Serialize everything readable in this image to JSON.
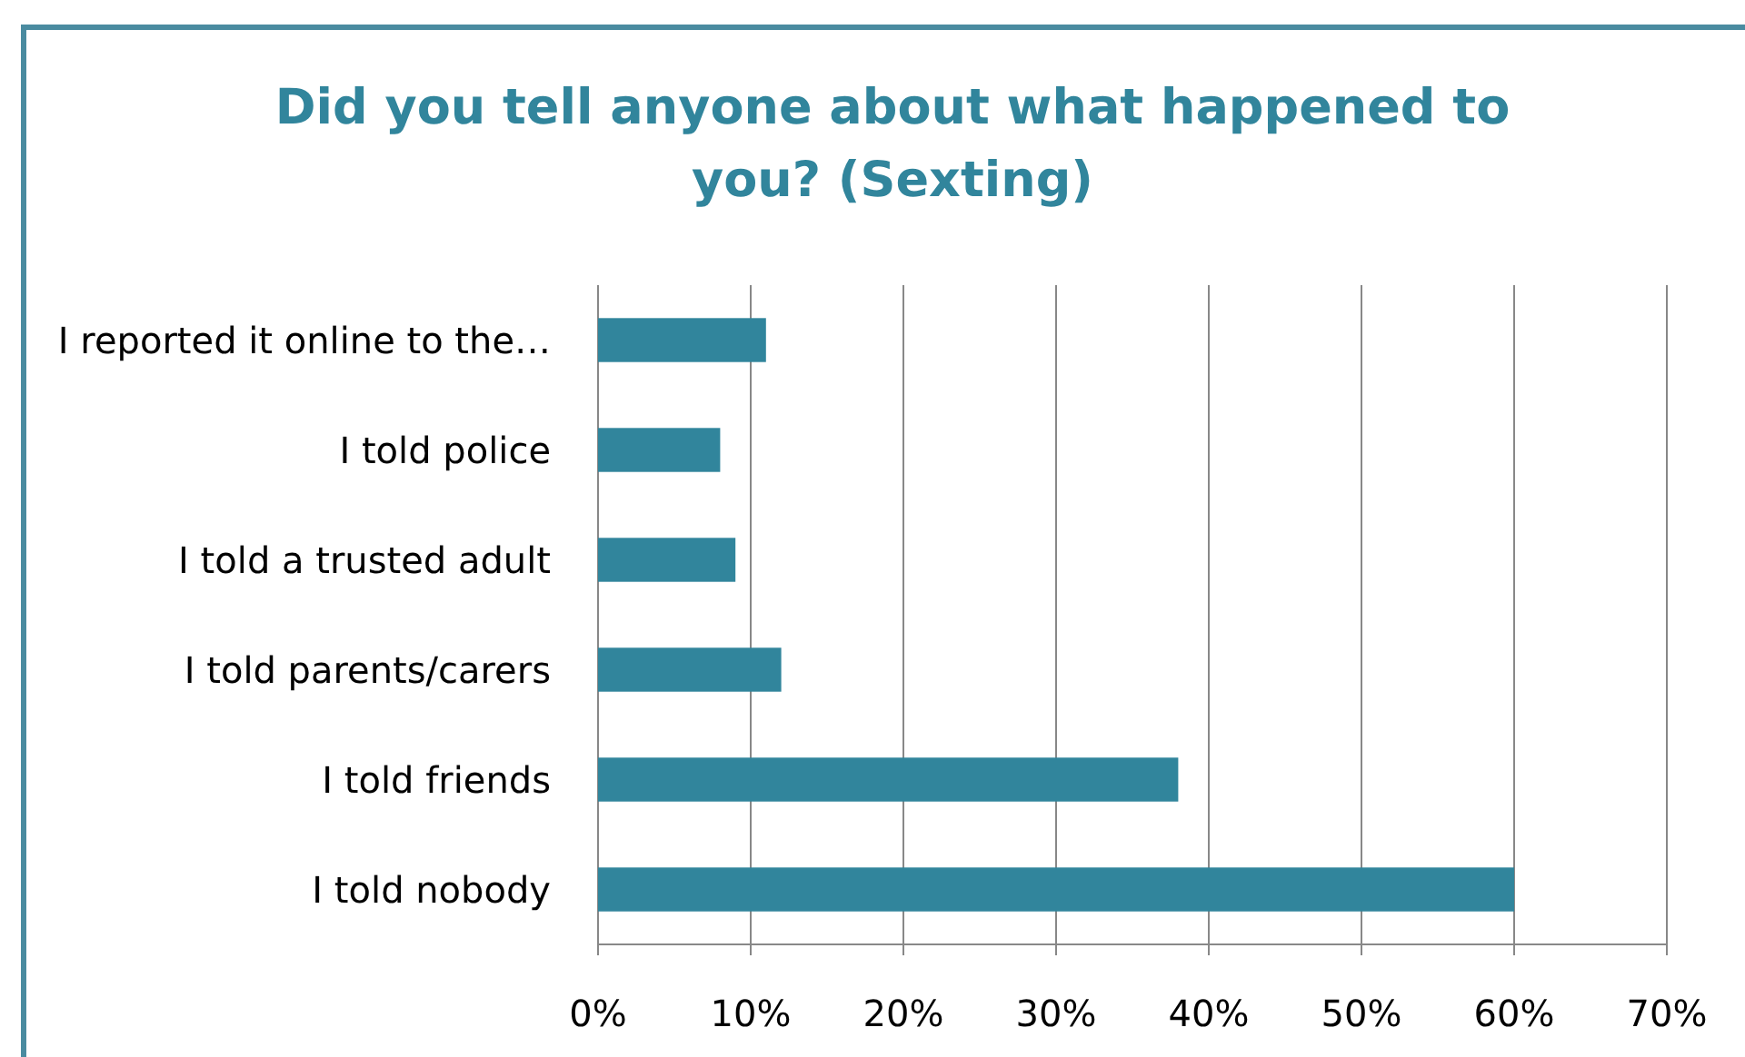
{
  "chart_data": {
    "type": "bar",
    "orientation": "horizontal",
    "title": "Did you tell anyone about what happened to you? (Sexting)",
    "categories": [
      "I reported it online to the…",
      "I told police",
      "I told a trusted adult",
      "I told parents/carers",
      "I told friends",
      "I told nobody"
    ],
    "values": [
      11,
      8,
      9,
      12,
      38,
      60
    ],
    "color": "#31859c",
    "xlim": [
      0,
      70
    ],
    "xticks": [
      {
        "value": 0,
        "label": "0%"
      },
      {
        "value": 10,
        "label": "10%"
      },
      {
        "value": 20,
        "label": "20%"
      },
      {
        "value": 30,
        "label": "30%"
      },
      {
        "value": 40,
        "label": "40%"
      },
      {
        "value": 50,
        "label": "50%"
      },
      {
        "value": 60,
        "label": "60%"
      },
      {
        "value": 70,
        "label": "70%"
      }
    ],
    "grid": "x"
  }
}
